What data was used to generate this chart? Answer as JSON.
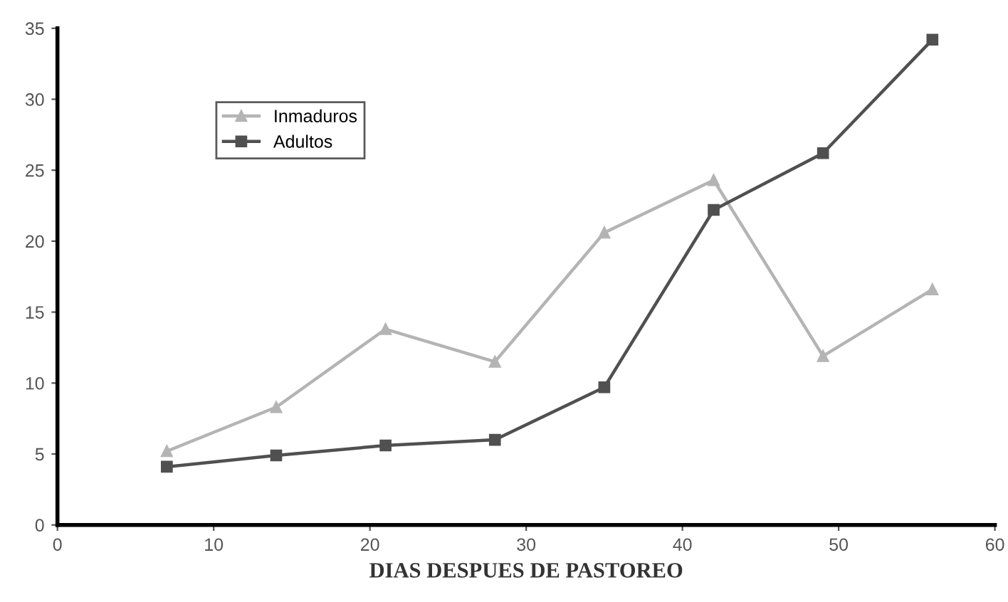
{
  "chart_data": {
    "type": "line",
    "xlabel": "DIAS DESPUES DE PASTOREO",
    "xlim": [
      0,
      60
    ],
    "xticks": [
      0,
      10,
      20,
      30,
      40,
      50,
      60
    ],
    "ylim": [
      0,
      35
    ],
    "yticks": [
      0,
      5,
      10,
      15,
      20,
      25,
      30,
      35
    ],
    "x": [
      7,
      14,
      21,
      28,
      35,
      42,
      49,
      56
    ],
    "series": [
      {
        "name": "Inmaduros",
        "color": "#b4b4b4",
        "marker": "triangle",
        "values": [
          5.2,
          8.3,
          13.8,
          11.5,
          20.6,
          24.3,
          11.9,
          16.6
        ]
      },
      {
        "name": "Adultos",
        "color": "#505050",
        "marker": "square",
        "values": [
          4.1,
          4.9,
          5.6,
          6.0,
          9.7,
          22.2,
          26.2,
          34.2
        ]
      }
    ],
    "legend": "top left",
    "grid": false,
    "line_style": "solid"
  }
}
